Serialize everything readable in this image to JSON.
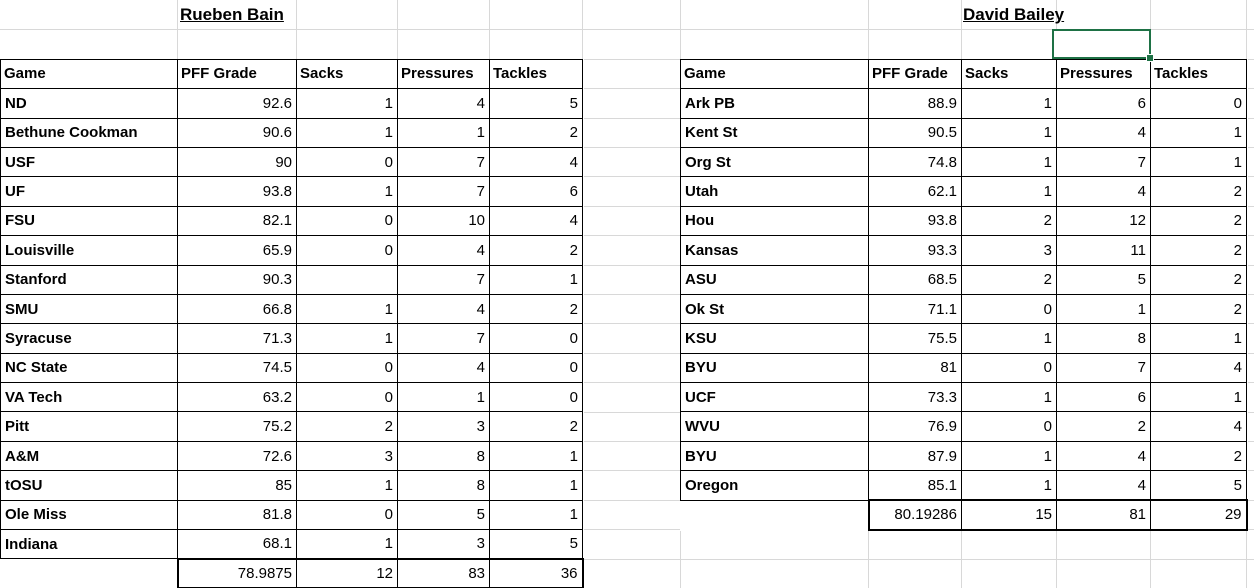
{
  "sheet": {
    "gridline_color": "#d8d8d8",
    "selection_color": "#1e7145"
  },
  "left_table": {
    "title": "Rueben Bain",
    "columns": [
      "Game",
      "PFF Grade",
      "Sacks",
      "Pressures",
      "Tackles"
    ],
    "rows": [
      [
        "ND",
        "92.6",
        "1",
        "4",
        "5"
      ],
      [
        "Bethune Cookman",
        "90.6",
        "1",
        "1",
        "2"
      ],
      [
        "USF",
        "90",
        "0",
        "7",
        "4"
      ],
      [
        "UF",
        "93.8",
        "1",
        "7",
        "6"
      ],
      [
        "FSU",
        "82.1",
        "0",
        "10",
        "4"
      ],
      [
        "Louisville",
        "65.9",
        "0",
        "4",
        "2"
      ],
      [
        "Stanford",
        "90.3",
        "",
        "7",
        "1"
      ],
      [
        "SMU",
        "66.8",
        "1",
        "4",
        "2"
      ],
      [
        "Syracuse",
        "71.3",
        "1",
        "7",
        "0"
      ],
      [
        "NC State",
        "74.5",
        "0",
        "4",
        "0"
      ],
      [
        "VA Tech",
        "63.2",
        "0",
        "1",
        "0"
      ],
      [
        "Pitt",
        "75.2",
        "2",
        "3",
        "2"
      ],
      [
        "A&M",
        "72.6",
        "3",
        "8",
        "1"
      ],
      [
        "tOSU",
        "85",
        "1",
        "8",
        "1"
      ],
      [
        "Ole Miss",
        "81.8",
        "0",
        "5",
        "1"
      ],
      [
        "Indiana",
        "68.1",
        "1",
        "3",
        "5"
      ]
    ],
    "totals": [
      "",
      "78.9875",
      "12",
      "83",
      "36"
    ]
  },
  "right_table": {
    "title": "David Bailey",
    "columns": [
      "Game",
      "PFF Grade",
      "Sacks",
      "Pressures",
      "Tackles"
    ],
    "rows": [
      [
        "Ark PB",
        "88.9",
        "1",
        "6",
        "0"
      ],
      [
        "Kent St",
        "90.5",
        "1",
        "4",
        "1"
      ],
      [
        "Org St",
        "74.8",
        "1",
        "7",
        "1"
      ],
      [
        "Utah",
        "62.1",
        "1",
        "4",
        "2"
      ],
      [
        "Hou",
        "93.8",
        "2",
        "12",
        "2"
      ],
      [
        "Kansas",
        "93.3",
        "3",
        "11",
        "2"
      ],
      [
        "ASU",
        "68.5",
        "2",
        "5",
        "2"
      ],
      [
        "Ok St",
        "71.1",
        "0",
        "1",
        "2"
      ],
      [
        "KSU",
        "75.5",
        "1",
        "8",
        "1"
      ],
      [
        "BYU",
        "81",
        "0",
        "7",
        "4"
      ],
      [
        "UCF",
        "73.3",
        "1",
        "6",
        "1"
      ],
      [
        "WVU",
        "76.9",
        "0",
        "2",
        "4"
      ],
      [
        "BYU",
        "87.9",
        "1",
        "4",
        "2"
      ],
      [
        "Oregon",
        "85.1",
        "1",
        "4",
        "5"
      ]
    ],
    "totals": [
      "",
      "80.19286",
      "15",
      "81",
      "29"
    ]
  }
}
